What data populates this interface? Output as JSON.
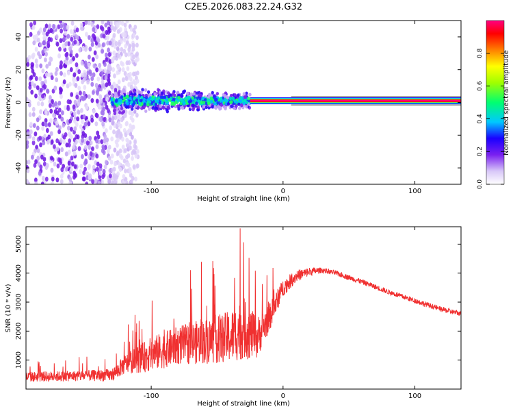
{
  "chart_data": [
    {
      "type": "heatmap",
      "title": "C2E5.2026.083.22.24.G32",
      "xlabel": "Height of straight line (km)",
      "ylabel": "Frequency (Hz)",
      "xlim": [
        -195,
        135
      ],
      "ylim": [
        -50,
        50
      ],
      "x_ticks": [
        -100,
        0,
        100
      ],
      "y_ticks": [
        -40,
        -20,
        0,
        20,
        40
      ],
      "regions": [
        {
          "name": "noise",
          "x": [
            -195,
            -130
          ],
          "freq_spread": 50,
          "level": 0.15
        },
        {
          "name": "scintillation",
          "x": [
            -130,
            -25
          ],
          "freq_spread": 8,
          "level": 0.3
        },
        {
          "name": "tone",
          "x": [
            -25,
            135
          ],
          "freq": 1,
          "level": 0.9
        }
      ],
      "colorbar": {
        "label": "Normalized spectral amplitude",
        "range": [
          0,
          1
        ],
        "ticks": [
          0.0,
          0.2,
          0.4,
          0.6,
          0.8
        ]
      }
    },
    {
      "type": "line",
      "xlabel": "Height of straight line (km)",
      "ylabel": "SNR (10 * v/v)",
      "xlim": [
        -195,
        135
      ],
      "ylim": [
        0,
        5600
      ],
      "x_ticks": [
        -100,
        0,
        100
      ],
      "y_ticks": [
        1000,
        2000,
        3000,
        4000,
        5000
      ],
      "color": "#f03030",
      "series": [
        {
          "name": "SNR envelope",
          "x": [
            -195,
            -160,
            -130,
            -120,
            -100,
            -80,
            -60,
            -40,
            -30,
            -20,
            -10,
            0,
            10,
            20,
            30,
            40,
            60,
            80,
            100,
            120,
            135
          ],
          "y": [
            420,
            450,
            480,
            850,
            1200,
            1500,
            1650,
            1800,
            2100,
            1750,
            2500,
            3500,
            3900,
            4050,
            4100,
            4000,
            3700,
            3350,
            3050,
            2750,
            2600
          ],
          "spread": [
            300,
            300,
            350,
            550,
            1000,
            1100,
            1300,
            1500,
            1800,
            1200,
            800,
            500,
            350,
            250,
            150,
            150,
            150,
            150,
            150,
            150,
            150
          ]
        }
      ]
    }
  ]
}
